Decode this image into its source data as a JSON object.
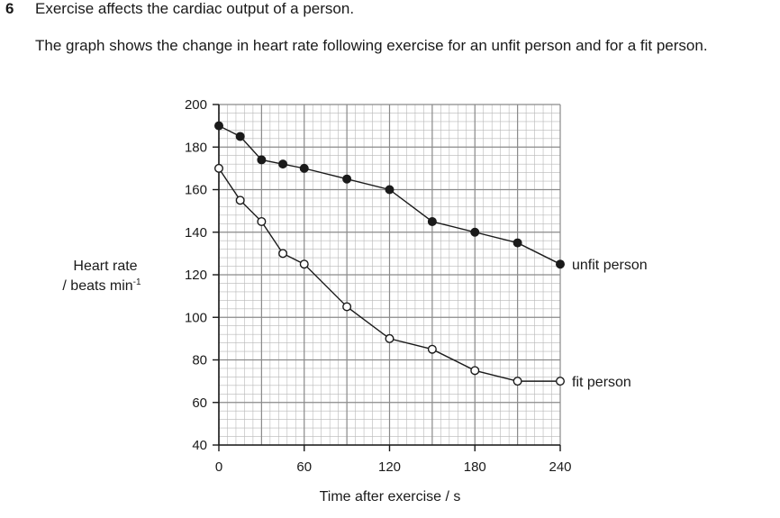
{
  "question": {
    "number": "6",
    "title": "Exercise affects the cardiac output of a person.",
    "intro": "The graph shows the change in heart rate following exercise for an unfit person and for a fit person."
  },
  "chart_data": {
    "type": "line",
    "title": "",
    "xlabel": "Time after exercise / s",
    "ylabel_line1": "Heart rate",
    "ylabel_line2": "/ beats min",
    "ylabel_sup": "-1",
    "xlim": [
      0,
      240
    ],
    "ylim": [
      40,
      200
    ],
    "xticks": [
      "0",
      "60",
      "120",
      "180",
      "240"
    ],
    "yticks": [
      "200",
      "180",
      "160",
      "140",
      "120",
      "100",
      "80",
      "60",
      "40"
    ],
    "grid": true,
    "series": [
      {
        "name": "unfit person",
        "marker": "filled-circle",
        "x": [
          0,
          15,
          30,
          45,
          60,
          90,
          120,
          150,
          180,
          210,
          240
        ],
        "y": [
          190,
          185,
          174,
          172,
          170,
          165,
          160,
          145,
          140,
          135,
          125
        ]
      },
      {
        "name": "fit person",
        "marker": "open-circle",
        "x": [
          0,
          15,
          30,
          45,
          60,
          90,
          120,
          150,
          180,
          210,
          240
        ],
        "y": [
          170,
          155,
          145,
          130,
          125,
          105,
          90,
          85,
          75,
          70,
          70
        ]
      }
    ]
  }
}
